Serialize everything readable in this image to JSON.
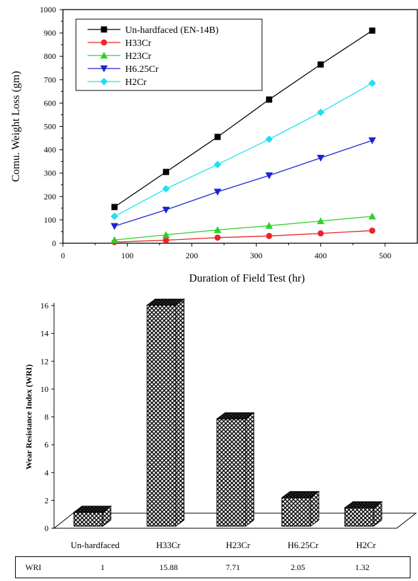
{
  "chart_data": [
    {
      "type": "line",
      "xlabel": "Duration of Field Test (hr)",
      "ylabel": "Comu. Weight Loss (gm)",
      "xlim": [
        0,
        550
      ],
      "ylim": [
        0,
        1000
      ],
      "xticks": [
        0,
        100,
        200,
        300,
        400,
        500
      ],
      "yticks": [
        0,
        100,
        200,
        300,
        400,
        500,
        600,
        700,
        800,
        900,
        1000
      ],
      "legend_position": "top-left",
      "grid": false,
      "x": [
        80,
        160,
        240,
        320,
        400,
        480
      ],
      "series": [
        {
          "name": "Un-hardfaced (EN-14B)",
          "marker": "square",
          "color": "#000000",
          "values": [
            155,
            305,
            455,
            615,
            765,
            910
          ]
        },
        {
          "name": "H33Cr",
          "marker": "circle",
          "color": "#e8262a",
          "values": [
            5,
            13,
            24,
            31,
            42,
            54
          ]
        },
        {
          "name": "H23Cr",
          "marker": "triangle-up",
          "color": "#2ed12a",
          "values": [
            14,
            36,
            57,
            75,
            95,
            115
          ]
        },
        {
          "name": "H6.25Cr",
          "marker": "triangle-down",
          "color": "#1c22d6",
          "values": [
            73,
            143,
            220,
            290,
            365,
            440
          ]
        },
        {
          "name": "H2Cr",
          "marker": "diamond",
          "color": "#1ee0f0",
          "values": [
            115,
            233,
            337,
            445,
            560,
            685
          ]
        }
      ]
    },
    {
      "type": "bar",
      "ylabel": "Wear Resistance Index (WRI)",
      "ylim": [
        0,
        16
      ],
      "yticks": [
        0,
        2,
        4,
        6,
        8,
        10,
        12,
        14,
        16
      ],
      "categories": [
        "Un-hardfaced",
        "H33Cr",
        "H23Cr",
        "H6.25Cr",
        "H2Cr"
      ],
      "values": [
        1,
        15.88,
        7.71,
        2.05,
        1.32
      ],
      "bar_style": "3d-crosshatch",
      "table": {
        "row_label": "WRI",
        "values": [
          "1",
          "15.88",
          "7.71",
          "2.05",
          "1.32"
        ]
      }
    }
  ]
}
